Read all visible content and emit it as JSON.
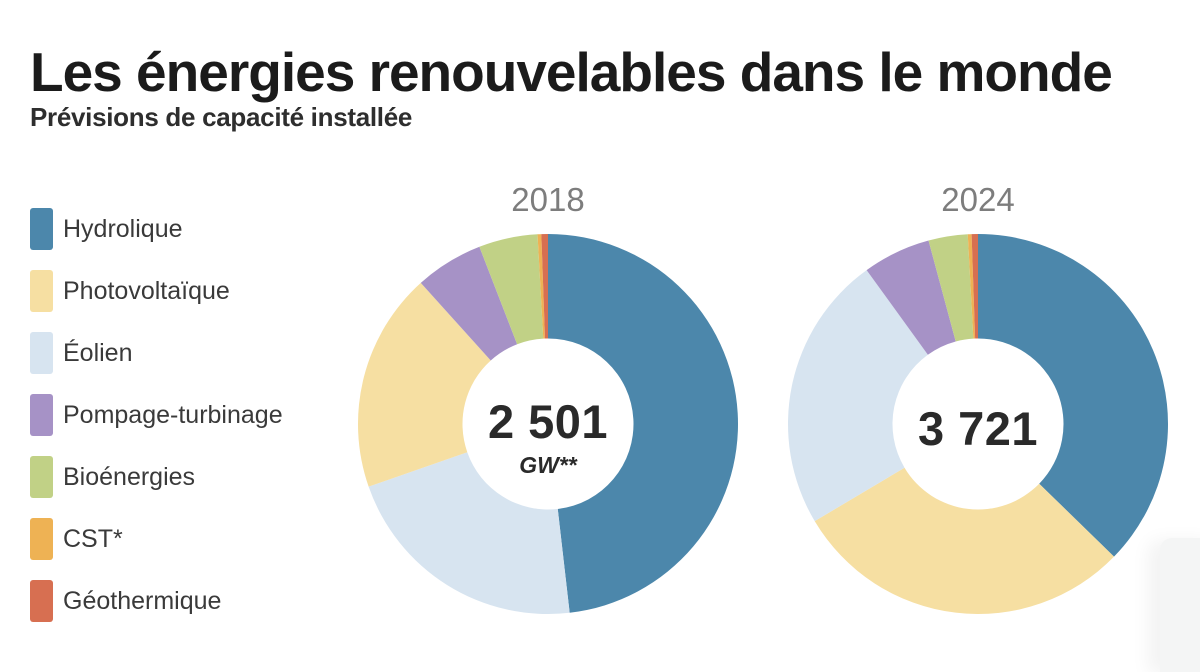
{
  "title": "Les énergies renouvelables dans le monde",
  "subtitle": "Prévisions de capacité installée",
  "legend": {
    "position": "left",
    "items": [
      {
        "label": "Hydrolique",
        "color": "#4c87ab"
      },
      {
        "label": "Photovoltaïque",
        "color": "#f6dfa2"
      },
      {
        "label": "Éolien",
        "color": "#d7e4f0"
      },
      {
        "label": "Pompage-turbinage",
        "color": "#a692c6"
      },
      {
        "label": "Bioénergies",
        "color": "#c1d186"
      },
      {
        "label": "CST*",
        "color": "#eeb254"
      },
      {
        "label": "Géothermique",
        "color": "#d76f51"
      }
    ]
  },
  "chart_data": [
    {
      "type": "pie",
      "title": "2018",
      "center_value": "2 501",
      "center_unit": "GW**",
      "unit": "GW",
      "total": 2501,
      "donut_hole_ratio": 0.45,
      "start_angle": "top",
      "direction": "clockwise",
      "slices": [
        {
          "label": "Hydrolique",
          "value": 1205,
          "color": "#4c87ab"
        },
        {
          "label": "Éolien",
          "value": 537,
          "color": "#d7e4f0"
        },
        {
          "label": "Photovoltaïque",
          "value": 467,
          "color": "#f6dfa2"
        },
        {
          "label": "Pompage-turbinage",
          "value": 145,
          "color": "#a692c6"
        },
        {
          "label": "Bioénergies",
          "value": 125,
          "color": "#c1d186"
        },
        {
          "label": "CST*",
          "value": 8,
          "color": "#eeb254"
        },
        {
          "label": "Géothermique",
          "value": 14,
          "color": "#d76f51"
        }
      ]
    },
    {
      "type": "pie",
      "title": "2024",
      "center_value": "3 721",
      "center_unit": "",
      "unit": "GW",
      "total": 3721,
      "donut_hole_ratio": 0.45,
      "start_angle": "top",
      "direction": "clockwise",
      "slices": [
        {
          "label": "Hydrolique",
          "value": 1388,
          "color": "#4c87ab"
        },
        {
          "label": "Photovoltaïque",
          "value": 1085,
          "color": "#f6dfa2"
        },
        {
          "label": "Éolien",
          "value": 877,
          "color": "#d7e4f0"
        },
        {
          "label": "Pompage-turbinage",
          "value": 215,
          "color": "#a692c6"
        },
        {
          "label": "Bioénergies",
          "value": 124,
          "color": "#c1d186"
        },
        {
          "label": "CST*",
          "value": 12,
          "color": "#eeb254"
        },
        {
          "label": "Géothermique",
          "value": 20,
          "color": "#d76f51"
        }
      ]
    }
  ]
}
